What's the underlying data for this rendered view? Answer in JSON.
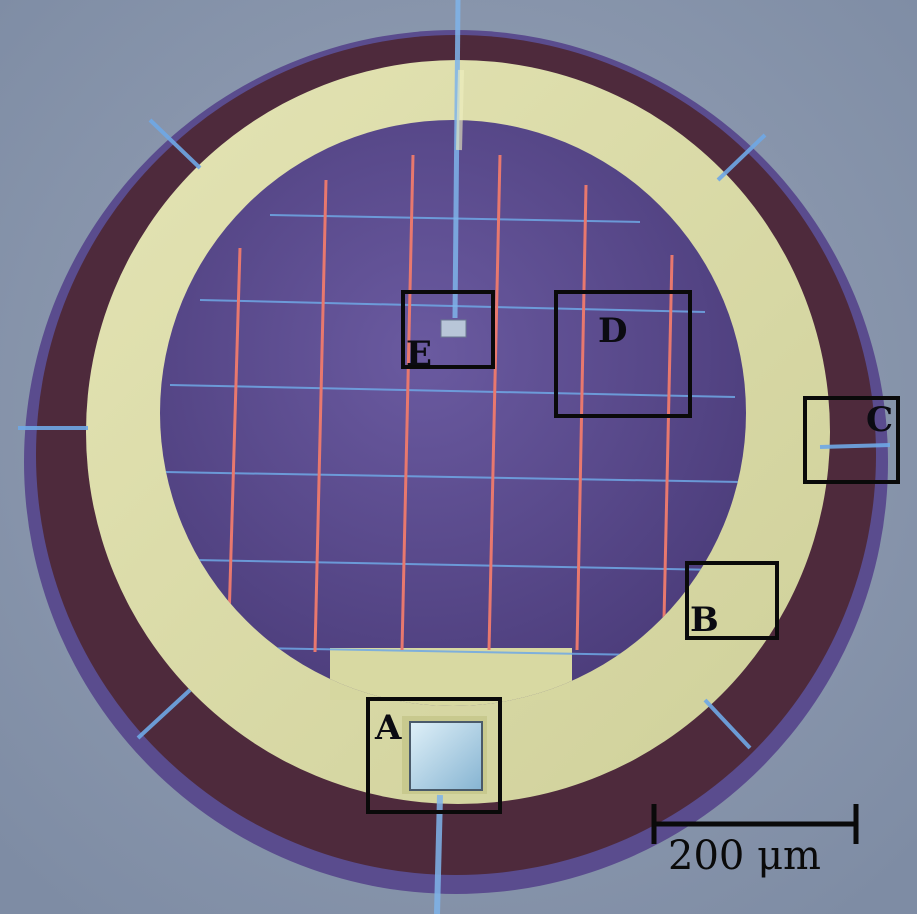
{
  "figure": {
    "regions": [
      {
        "id": "roi-a",
        "label": "A"
      },
      {
        "id": "roi-b",
        "label": "B"
      },
      {
        "id": "roi-c",
        "label": "C"
      },
      {
        "id": "roi-d",
        "label": "D"
      },
      {
        "id": "roi-e",
        "label": "E"
      }
    ],
    "scale_bar": {
      "label": "200 μm"
    },
    "colors": {
      "background": "#8795ab",
      "outer_ring": "#4e2a3c",
      "gold_ring": "#dcdca6",
      "detector": "#5a4a88",
      "red_lines": "#e07a72",
      "blue_lines": "#6fa8e6"
    }
  }
}
